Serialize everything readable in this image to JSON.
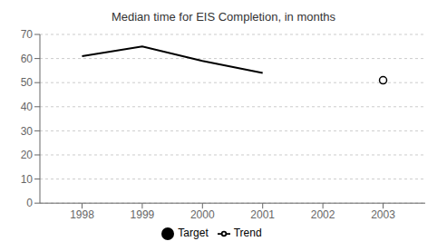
{
  "chart_data": {
    "type": "line",
    "title": "Median time for EIS Completion, in months",
    "x": [
      1998,
      1999,
      2000,
      2001,
      2003
    ],
    "series": [
      {
        "name": "Trend",
        "color": "#000000",
        "marker": "none",
        "line_style": "solid",
        "values": [
          61,
          65,
          59,
          54,
          null
        ]
      },
      {
        "name": "Target",
        "color": "#000000",
        "marker": "circle",
        "line_style": "none",
        "values": [
          null,
          null,
          null,
          null,
          51
        ]
      }
    ],
    "xlim": [
      1997.3,
      2003.7
    ],
    "xticks": [
      1998,
      1999,
      2000,
      2001,
      2002,
      2003
    ],
    "ylim": [
      0,
      70
    ],
    "yticks": [
      0,
      10,
      20,
      30,
      40,
      50,
      60,
      70
    ],
    "grid": "y",
    "legend": "bottom"
  }
}
